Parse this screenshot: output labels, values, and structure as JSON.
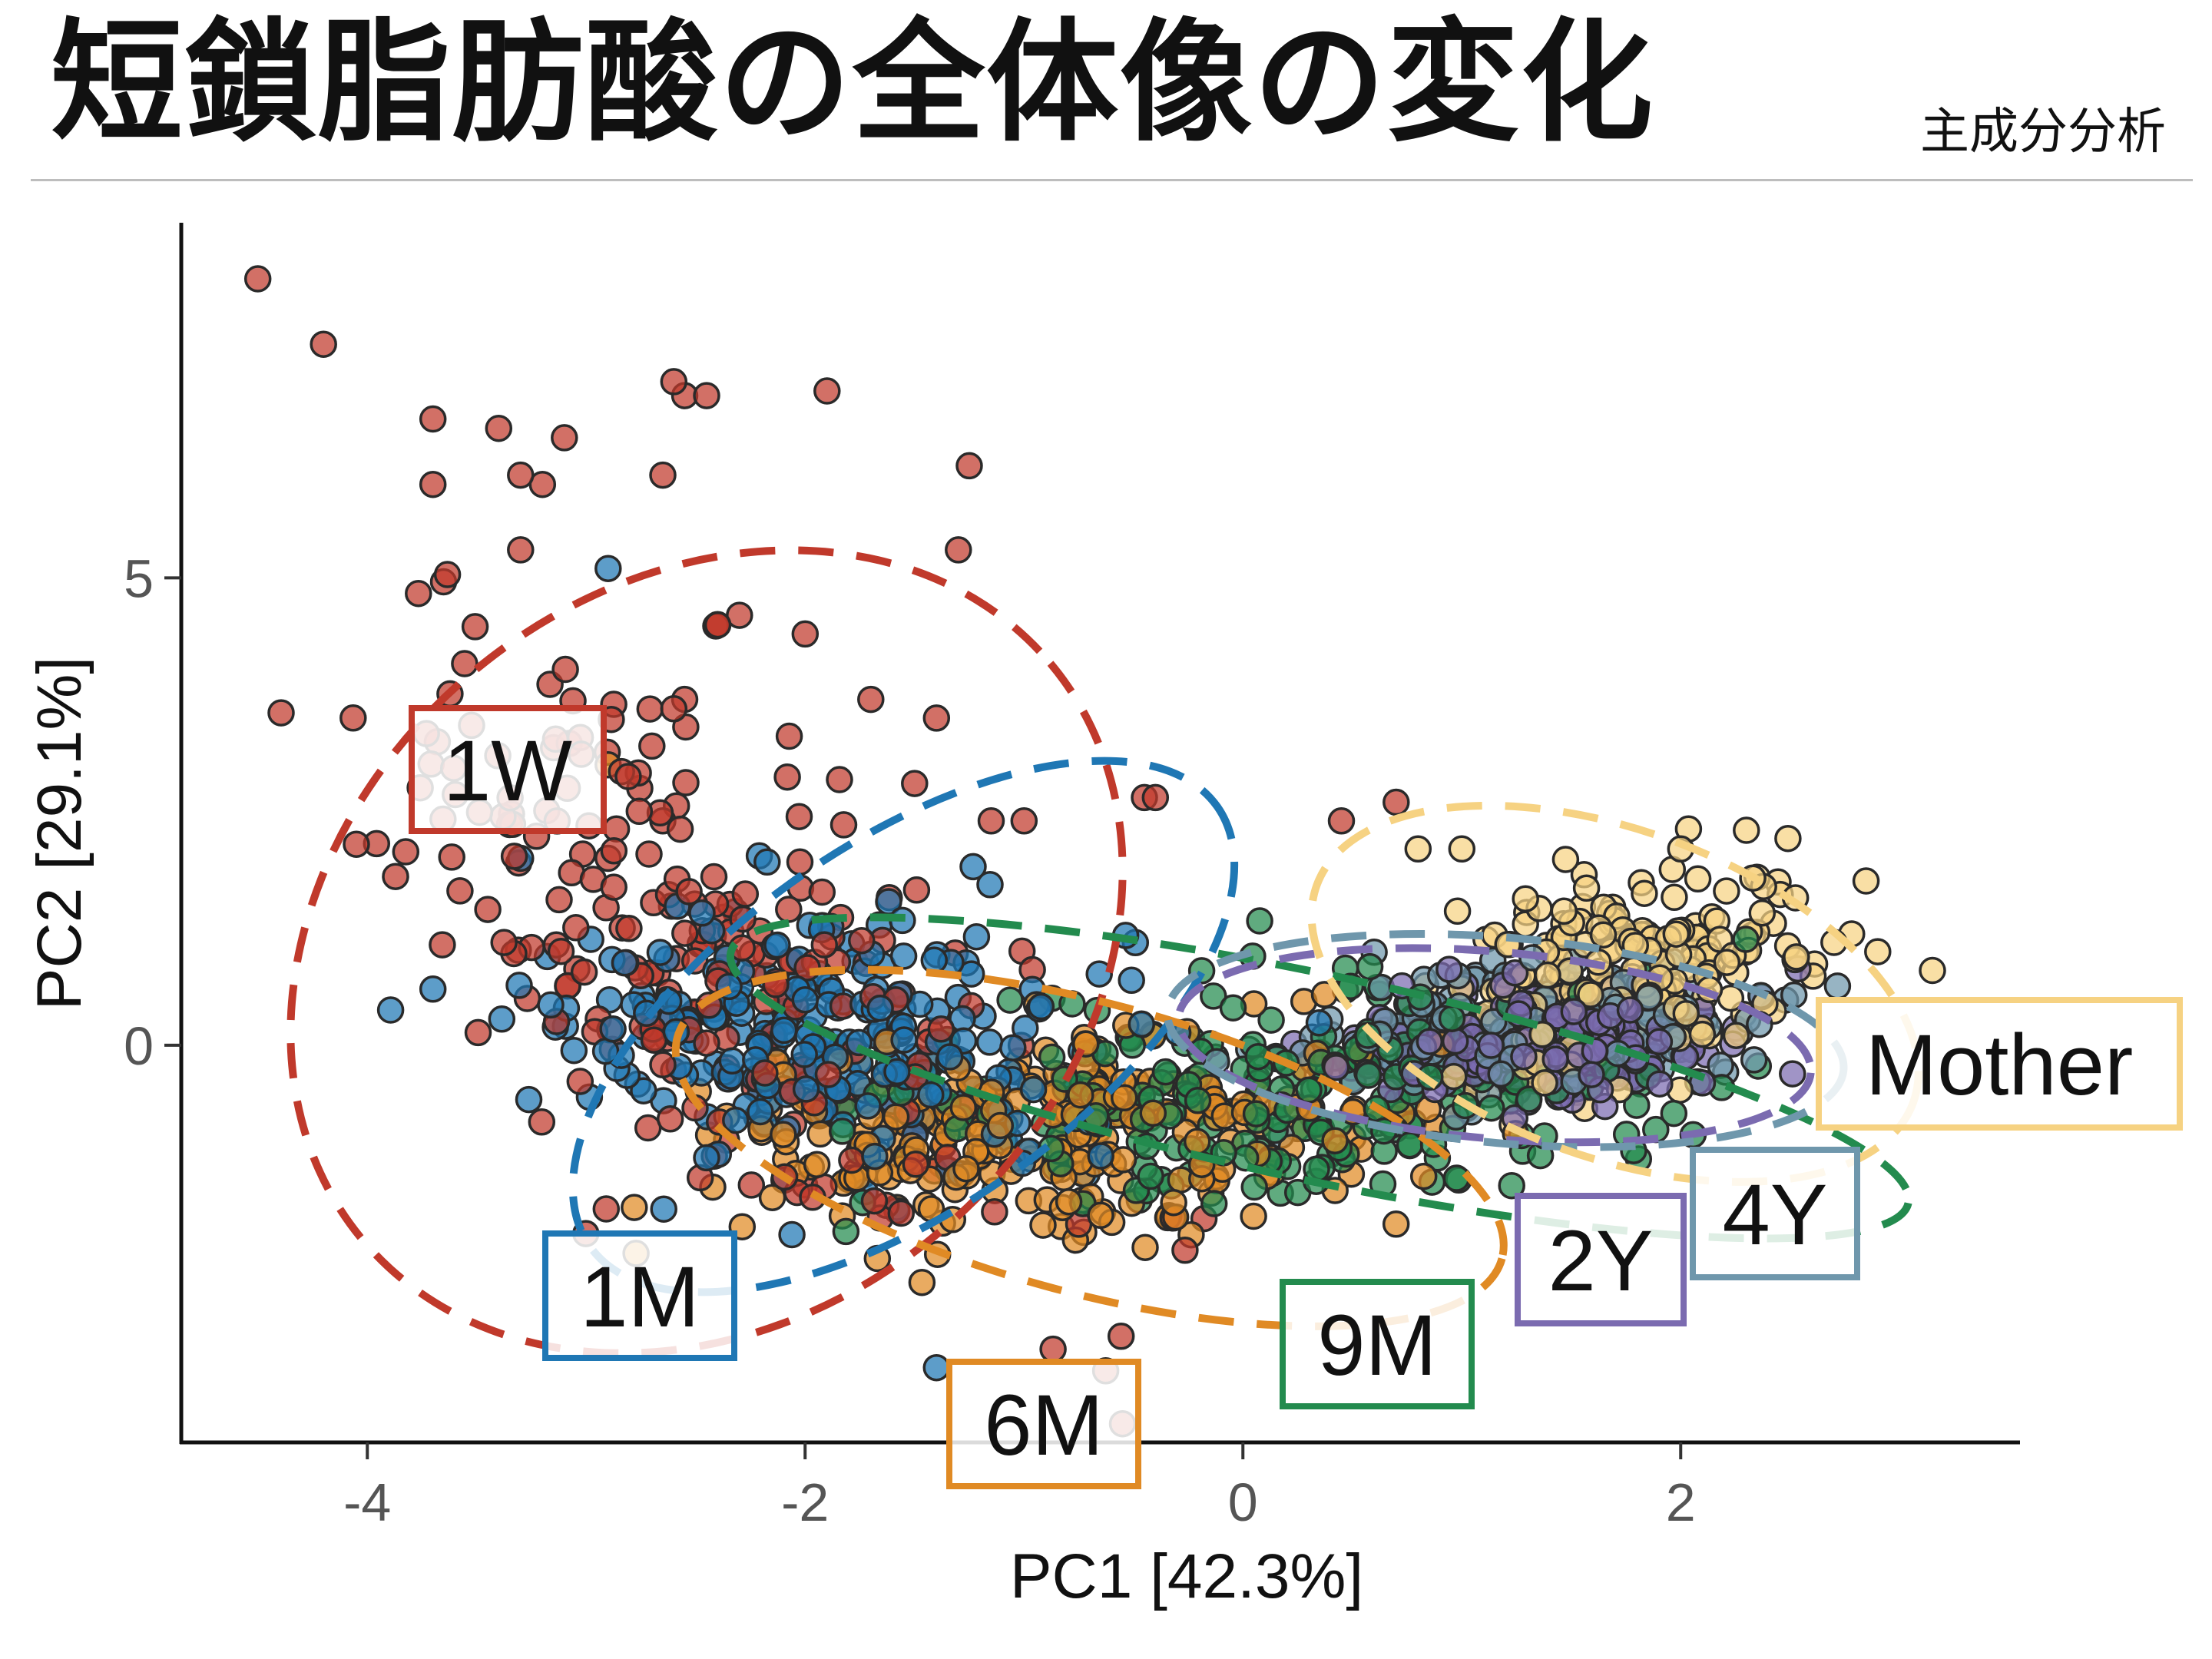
{
  "header": {
    "title": "短鎖脂肪酸の全体像の変化",
    "subtitle": "主成分分析"
  },
  "chart_data": {
    "type": "scatter",
    "xlabel": "PC1 [42.3%]",
    "ylabel": "PC2 [29.1%]",
    "xlim": [
      -4.85,
      3.55
    ],
    "ylim": [
      -4.25,
      8.8
    ],
    "x_ticks": [
      -4,
      -2,
      0,
      2
    ],
    "y_ticks": [
      0,
      5
    ],
    "x_tick_labels": [
      "-4",
      "-2",
      "0",
      "2"
    ],
    "y_tick_labels": [
      "0",
      "5"
    ],
    "grid": false,
    "legend": "none; group labels placed next to 95% confidence ellipses",
    "series": [
      {
        "name": "1W",
        "color": "#c0392b",
        "center": [
          -2.4,
          1.0
        ],
        "sd": [
          0.75,
          1.55
        ],
        "rho": -0.55,
        "n": 240,
        "ellipse": {
          "cx": -2.45,
          "cy": 1.0,
          "rx": 2.05,
          "ry": 3.9,
          "angle_deg": -40
        },
        "points": [
          [
            -4.5,
            8.2
          ],
          [
            -4.2,
            7.5
          ],
          [
            -3.7,
            6.7
          ],
          [
            -3.4,
            6.6
          ],
          [
            -3.1,
            6.5
          ],
          [
            -2.6,
            7.1
          ],
          [
            -2.55,
            6.95
          ],
          [
            -2.45,
            6.95
          ],
          [
            -1.9,
            7.0
          ],
          [
            -3.7,
            6.0
          ],
          [
            -3.3,
            6.1
          ],
          [
            -3.2,
            6.0
          ],
          [
            -2.65,
            6.1
          ],
          [
            -1.25,
            6.2
          ],
          [
            -3.3,
            5.3
          ],
          [
            -1.3,
            5.3
          ],
          [
            -2.4,
            4.5
          ],
          [
            -2.3,
            4.6
          ],
          [
            -2.0,
            4.4
          ],
          [
            -2.55,
            3.7
          ],
          [
            -2.6,
            3.6
          ],
          [
            -1.7,
            3.7
          ],
          [
            -1.4,
            3.5
          ],
          [
            -2.7,
            3.2
          ],
          [
            -1.5,
            2.8
          ],
          [
            -0.45,
            2.65
          ],
          [
            -0.4,
            2.65
          ],
          [
            0.45,
            2.4
          ],
          [
            0.7,
            2.6
          ],
          [
            -4.05,
            2.15
          ],
          [
            -2.65,
            2.4
          ],
          [
            -2.9,
            2.0
          ],
          [
            -1.15,
            2.4
          ],
          [
            -1.0,
            2.4
          ]
        ]
      },
      {
        "name": "1M",
        "color": "#1f77b4",
        "center": [
          -1.9,
          0.05
        ],
        "sd": [
          0.65,
          0.7
        ],
        "rho": -0.2,
        "n": 260,
        "ellipse": {
          "cx": -1.55,
          "cy": 0.2,
          "rx": 1.75,
          "ry": 1.95,
          "angle_deg": -35
        },
        "points": [
          [
            -3.3,
            2.0
          ],
          [
            -3.7,
            0.6
          ],
          [
            -2.9,
            5.1
          ],
          [
            -1.4,
            -3.45
          ]
        ]
      },
      {
        "name": "6M",
        "color": "#e08a24",
        "center": [
          -0.85,
          -0.95
        ],
        "sd": [
          0.8,
          0.55
        ],
        "rho": 0.1,
        "n": 260,
        "ellipse": {
          "cx": -0.7,
          "cy": -1.1,
          "rx": 1.95,
          "ry": 1.55,
          "angle_deg": 15
        },
        "points": [
          [
            -2.9,
            3.0
          ]
        ]
      },
      {
        "name": "9M",
        "color": "#238b4e",
        "center": [
          0.3,
          -0.5
        ],
        "sd": [
          0.9,
          0.6
        ],
        "rho": 0.3,
        "n": 260,
        "ellipse": {
          "cx": 0.35,
          "cy": -0.35,
          "rx": 2.75,
          "ry": 1.1,
          "angle_deg": 12
        },
        "points": []
      },
      {
        "name": "2Y",
        "color": "#7b6bb0",
        "center": [
          1.35,
          0.05
        ],
        "sd": [
          0.4,
          0.3
        ],
        "rho": 0.1,
        "n": 220,
        "ellipse": {
          "cx": 1.15,
          "cy": 0.0,
          "rx": 1.45,
          "ry": 1.0,
          "angle_deg": 5
        },
        "points": []
      },
      {
        "name": "4Y",
        "color": "#6f97ac",
        "center": [
          1.35,
          0.15
        ],
        "sd": [
          0.45,
          0.35
        ],
        "rho": 0.1,
        "n": 210,
        "ellipse": {
          "cx": 1.2,
          "cy": 0.05,
          "rx": 1.55,
          "ry": 1.1,
          "angle_deg": 5
        },
        "points": []
      },
      {
        "name": "Mother",
        "color": "#f6d282",
        "center": [
          1.75,
          0.75
        ],
        "sd": [
          0.4,
          0.55
        ],
        "rho": 0.3,
        "n": 230,
        "ellipse": {
          "cx": 1.7,
          "cy": 0.55,
          "rx": 1.45,
          "ry": 1.75,
          "angle_deg": 20
        },
        "points": [
          [
            0.8,
            2.1
          ],
          [
            1.0,
            2.1
          ],
          [
            2.3,
            2.3
          ],
          [
            2.0,
            2.1
          ],
          [
            2.7,
            1.1
          ],
          [
            2.9,
            1.0
          ],
          [
            3.15,
            0.8
          ]
        ]
      }
    ],
    "labels": [
      {
        "text": "1W",
        "color": "#c0392b"
      },
      {
        "text": "1M",
        "color": "#1f77b4"
      },
      {
        "text": "6M",
        "color": "#e08a24"
      },
      {
        "text": "9M",
        "color": "#238b4e"
      },
      {
        "text": "2Y",
        "color": "#7b6bb0"
      },
      {
        "text": "4Y",
        "color": "#6f97ac"
      },
      {
        "text": "Mother",
        "color": "#f6d282"
      }
    ]
  }
}
